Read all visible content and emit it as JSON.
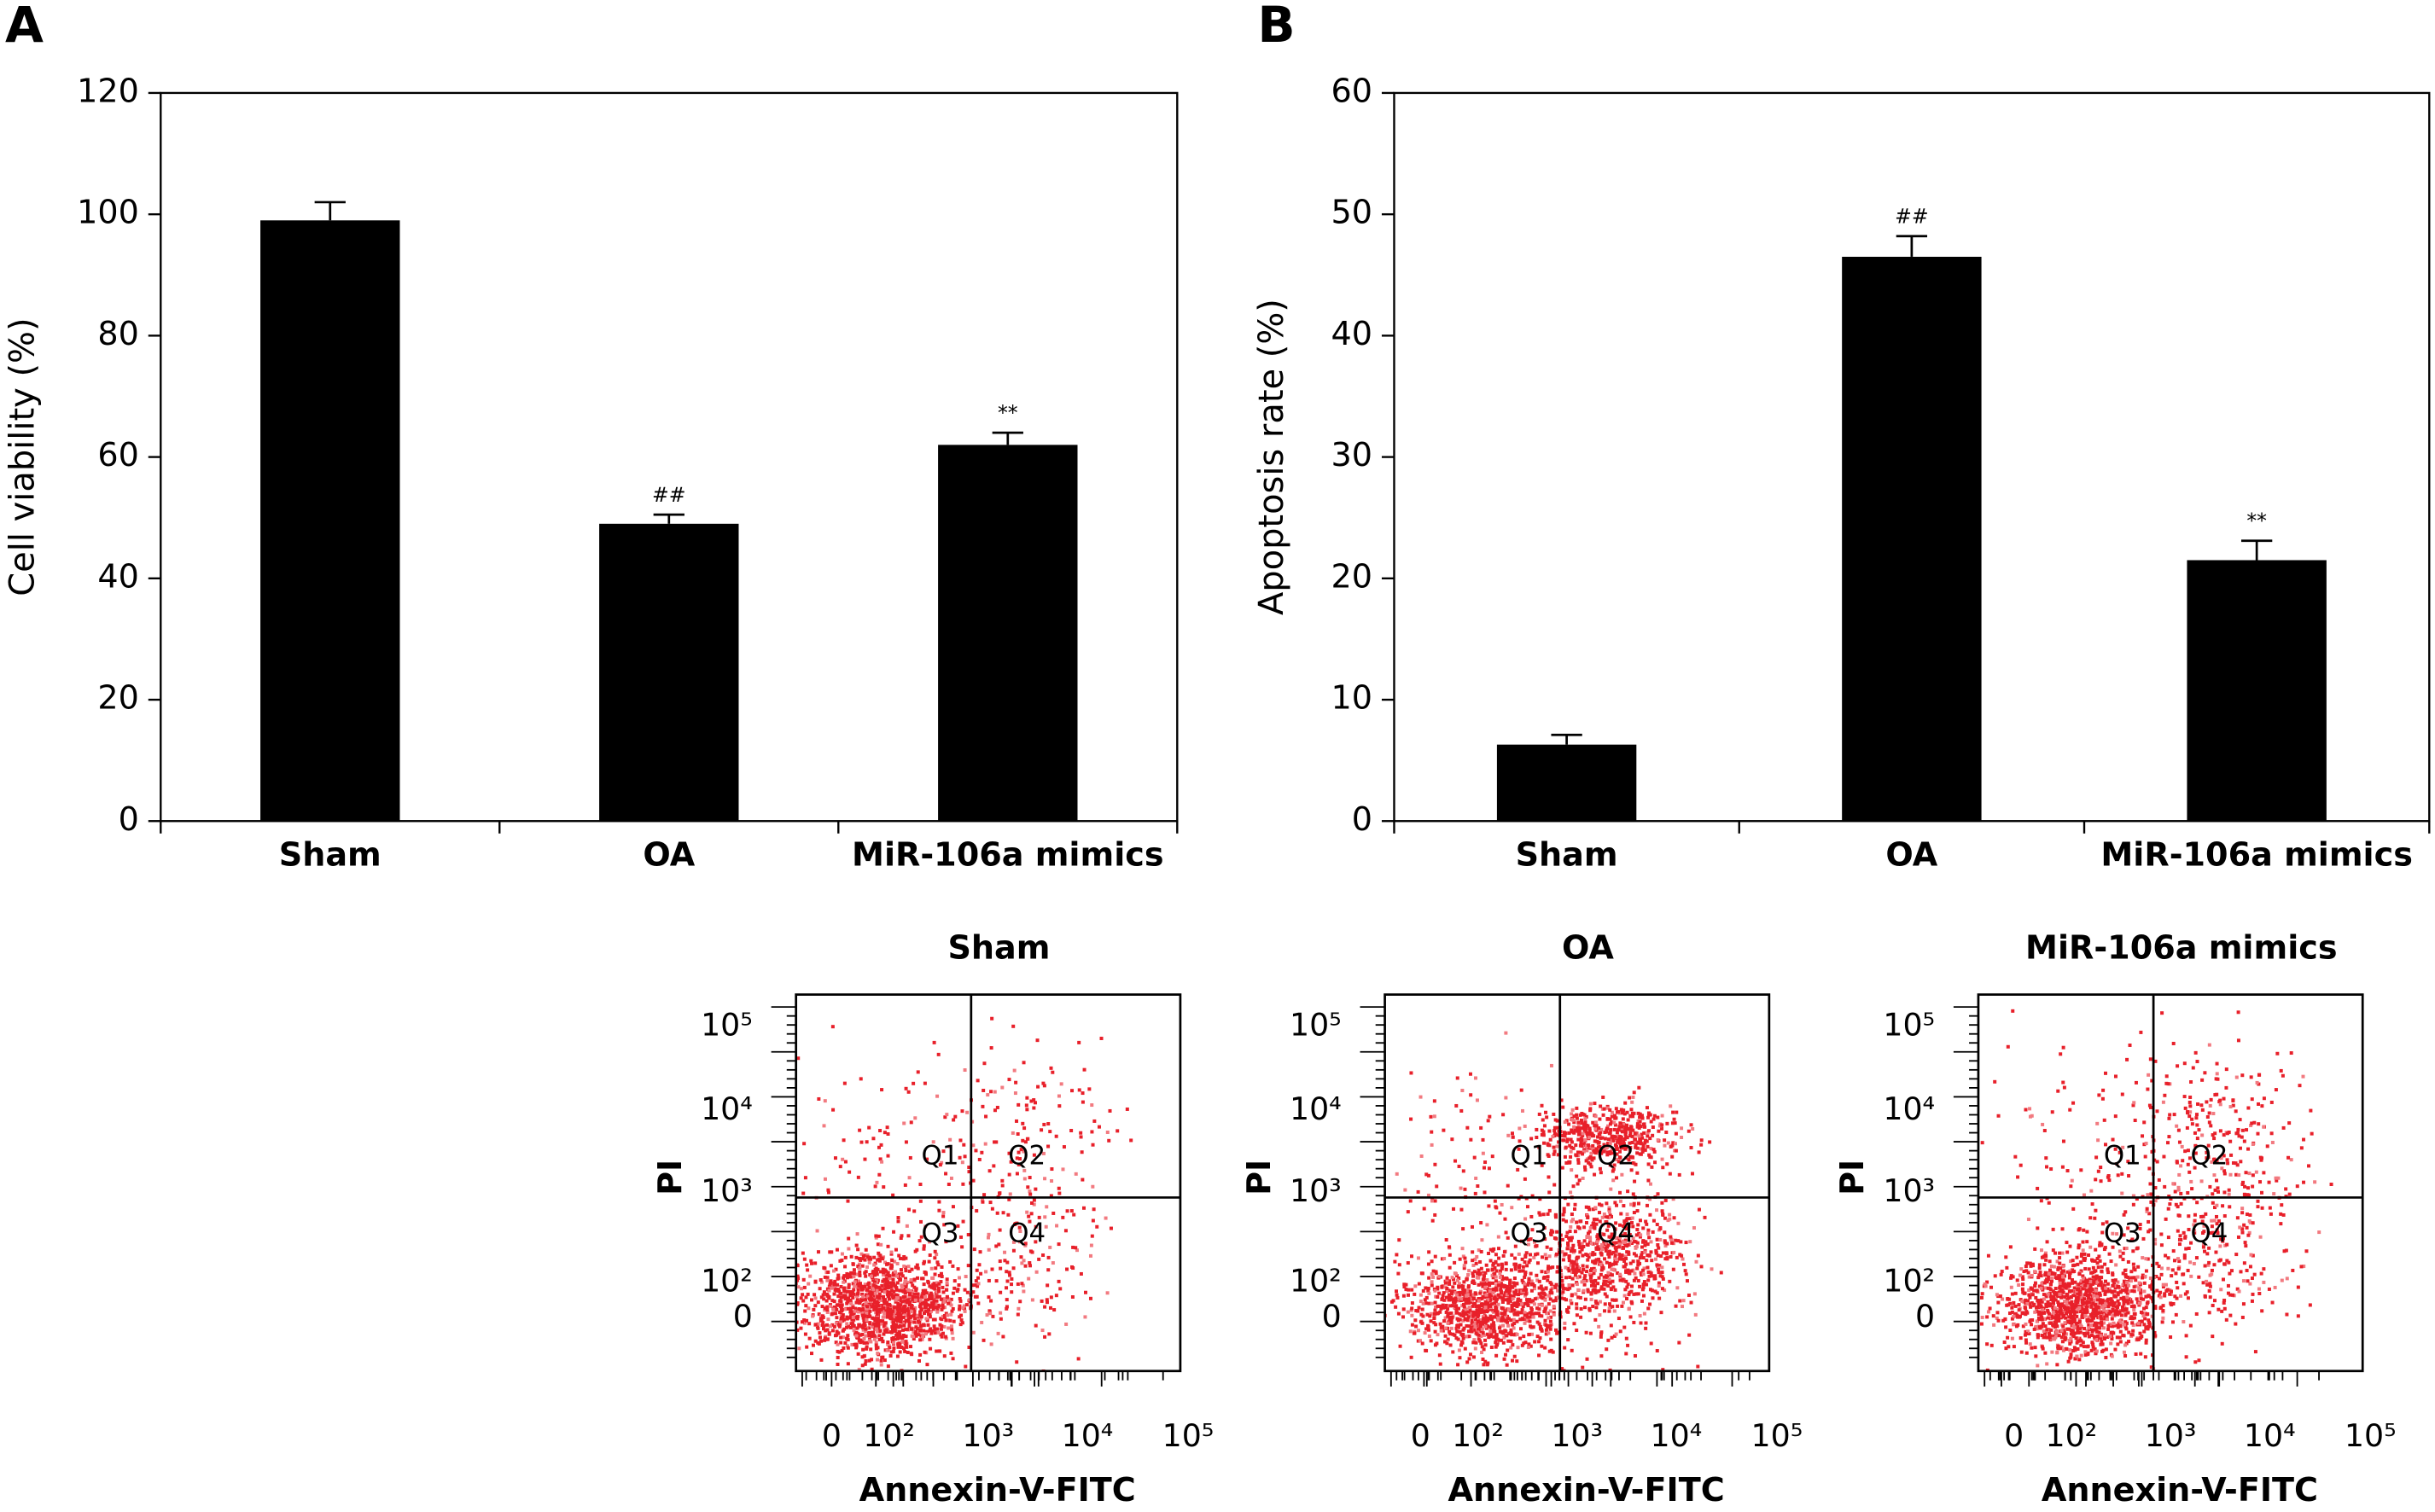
{
  "chart_data": [
    {
      "type": "bar",
      "panel_label": "A",
      "y_label": "Cell viability (%)",
      "categories": [
        "Sham",
        "OA",
        "MiR-106a mimics"
      ],
      "values": [
        99,
        49,
        62
      ],
      "errors": [
        3,
        1.5,
        2
      ],
      "annotations": [
        null,
        "##",
        "**"
      ],
      "color": "#000000",
      "ylim": [
        0,
        120
      ],
      "yticks": [
        0,
        20,
        40,
        60,
        80,
        100,
        120
      ]
    },
    {
      "type": "bar",
      "panel_label": "B",
      "y_label": "Apoptosis rate (%)",
      "categories": [
        "Sham",
        "OA",
        "MiR-106a mimics"
      ],
      "values": [
        6.3,
        46.5,
        21.5
      ],
      "errors": [
        0.8,
        1.7,
        1.6
      ],
      "annotations": [
        null,
        "##",
        "**"
      ],
      "color": "#000000",
      "ylim": [
        0,
        60
      ],
      "yticks": [
        0,
        10,
        20,
        30,
        40,
        50,
        60
      ]
    }
  ],
  "flow": {
    "x_label": "Annexin-V-FITC",
    "y_label": "PI",
    "x_ticks": [
      "0",
      "10²",
      "10³",
      "10⁴",
      "10⁵"
    ],
    "y_ticks": [
      "10⁵",
      "10⁴",
      "10³",
      "10²",
      "0"
    ],
    "quadrant_labels": [
      "Q1",
      "Q2",
      "Q3",
      "Q4"
    ],
    "panels": [
      {
        "title": "Sham"
      },
      {
        "title": "OA"
      },
      {
        "title": "MiR-106a mimics"
      }
    ]
  }
}
